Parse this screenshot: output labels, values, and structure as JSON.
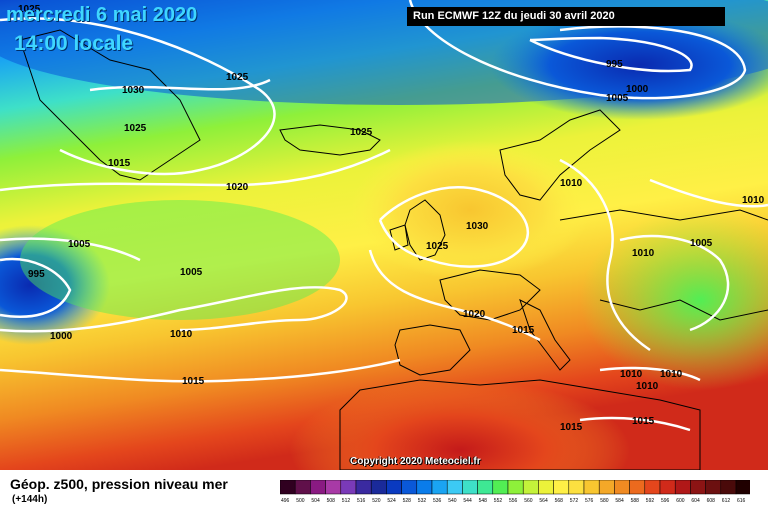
{
  "header": {
    "date": "mercredi 6 mai 2020",
    "time": "14:00 locale",
    "run": "Run ECMWF 12Z du jeudi 30 avril 2020"
  },
  "copyright": "Copyright 2020 Meteociel.fr",
  "footer": {
    "title": "Géop. z500, pression niveau mer",
    "subtitle": "(+144h)"
  },
  "legend": {
    "ticks": [
      "496",
      "500",
      "504",
      "508",
      "512",
      "516",
      "520",
      "524",
      "528",
      "532",
      "536",
      "540",
      "544",
      "548",
      "552",
      "556",
      "560",
      "564",
      "568",
      "572",
      "576",
      "580",
      "584",
      "588",
      "592",
      "596",
      "600",
      "604",
      "608",
      "612",
      "616"
    ],
    "colors": [
      "#300020",
      "#60104a",
      "#8a1a82",
      "#a83aa6",
      "#7a3ab8",
      "#3a2aa0",
      "#1a2a9a",
      "#0a3ac0",
      "#0a58d8",
      "#0a7cea",
      "#1aa4f2",
      "#3ccaf4",
      "#3ee0c8",
      "#3ee894",
      "#52ee54",
      "#8ef03a",
      "#c4f23a",
      "#ecf23a",
      "#fff046",
      "#fce040",
      "#f8c630",
      "#f4a828",
      "#f08a22",
      "#ec6a1e",
      "#e4461c",
      "#d02a1a",
      "#b01818",
      "#8c1414",
      "#6c1010",
      "#4a0a0a",
      "#200000"
    ]
  },
  "isobar_labels": [
    "1025",
    "1030",
    "1025",
    "1025",
    "1025",
    "1015",
    "1020",
    "1030",
    "1025",
    "1005",
    "995",
    "1005",
    "1000",
    "1010",
    "1015",
    "1020",
    "1015",
    "1010",
    "1005",
    "1010",
    "1010",
    "1010",
    "1010",
    "1015",
    "995",
    "1000",
    "1005",
    "1010",
    "1015"
  ]
}
